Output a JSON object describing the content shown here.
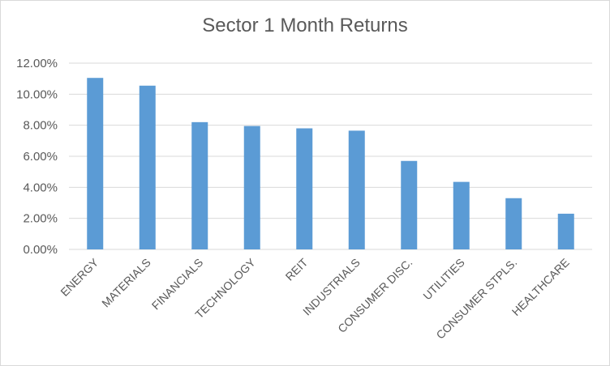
{
  "chart_data": {
    "type": "bar",
    "title": "Sector 1 Month Returns",
    "categories": [
      "ENERGY",
      "MATERIALS",
      "FINANCIALS",
      "TECHNOLOGY",
      "REIT",
      "INDUSTRIALS",
      "CONSUMER DISC.",
      "UTILITIES",
      "CONSUMER STPLS.",
      "HEALTHCARE"
    ],
    "values": [
      11.05,
      10.55,
      8.2,
      7.95,
      7.8,
      7.65,
      5.7,
      4.35,
      3.3,
      2.3
    ],
    "ylim": [
      0,
      12
    ],
    "yticks": [
      0,
      2,
      4,
      6,
      8,
      10,
      12
    ],
    "ytick_labels": [
      "0.00%",
      "2.00%",
      "4.00%",
      "6.00%",
      "8.00%",
      "10.00%",
      "12.00%"
    ],
    "grid": true,
    "legend": "none",
    "bar_color": "#5b9bd5",
    "grid_color": "#d9d9d9"
  }
}
